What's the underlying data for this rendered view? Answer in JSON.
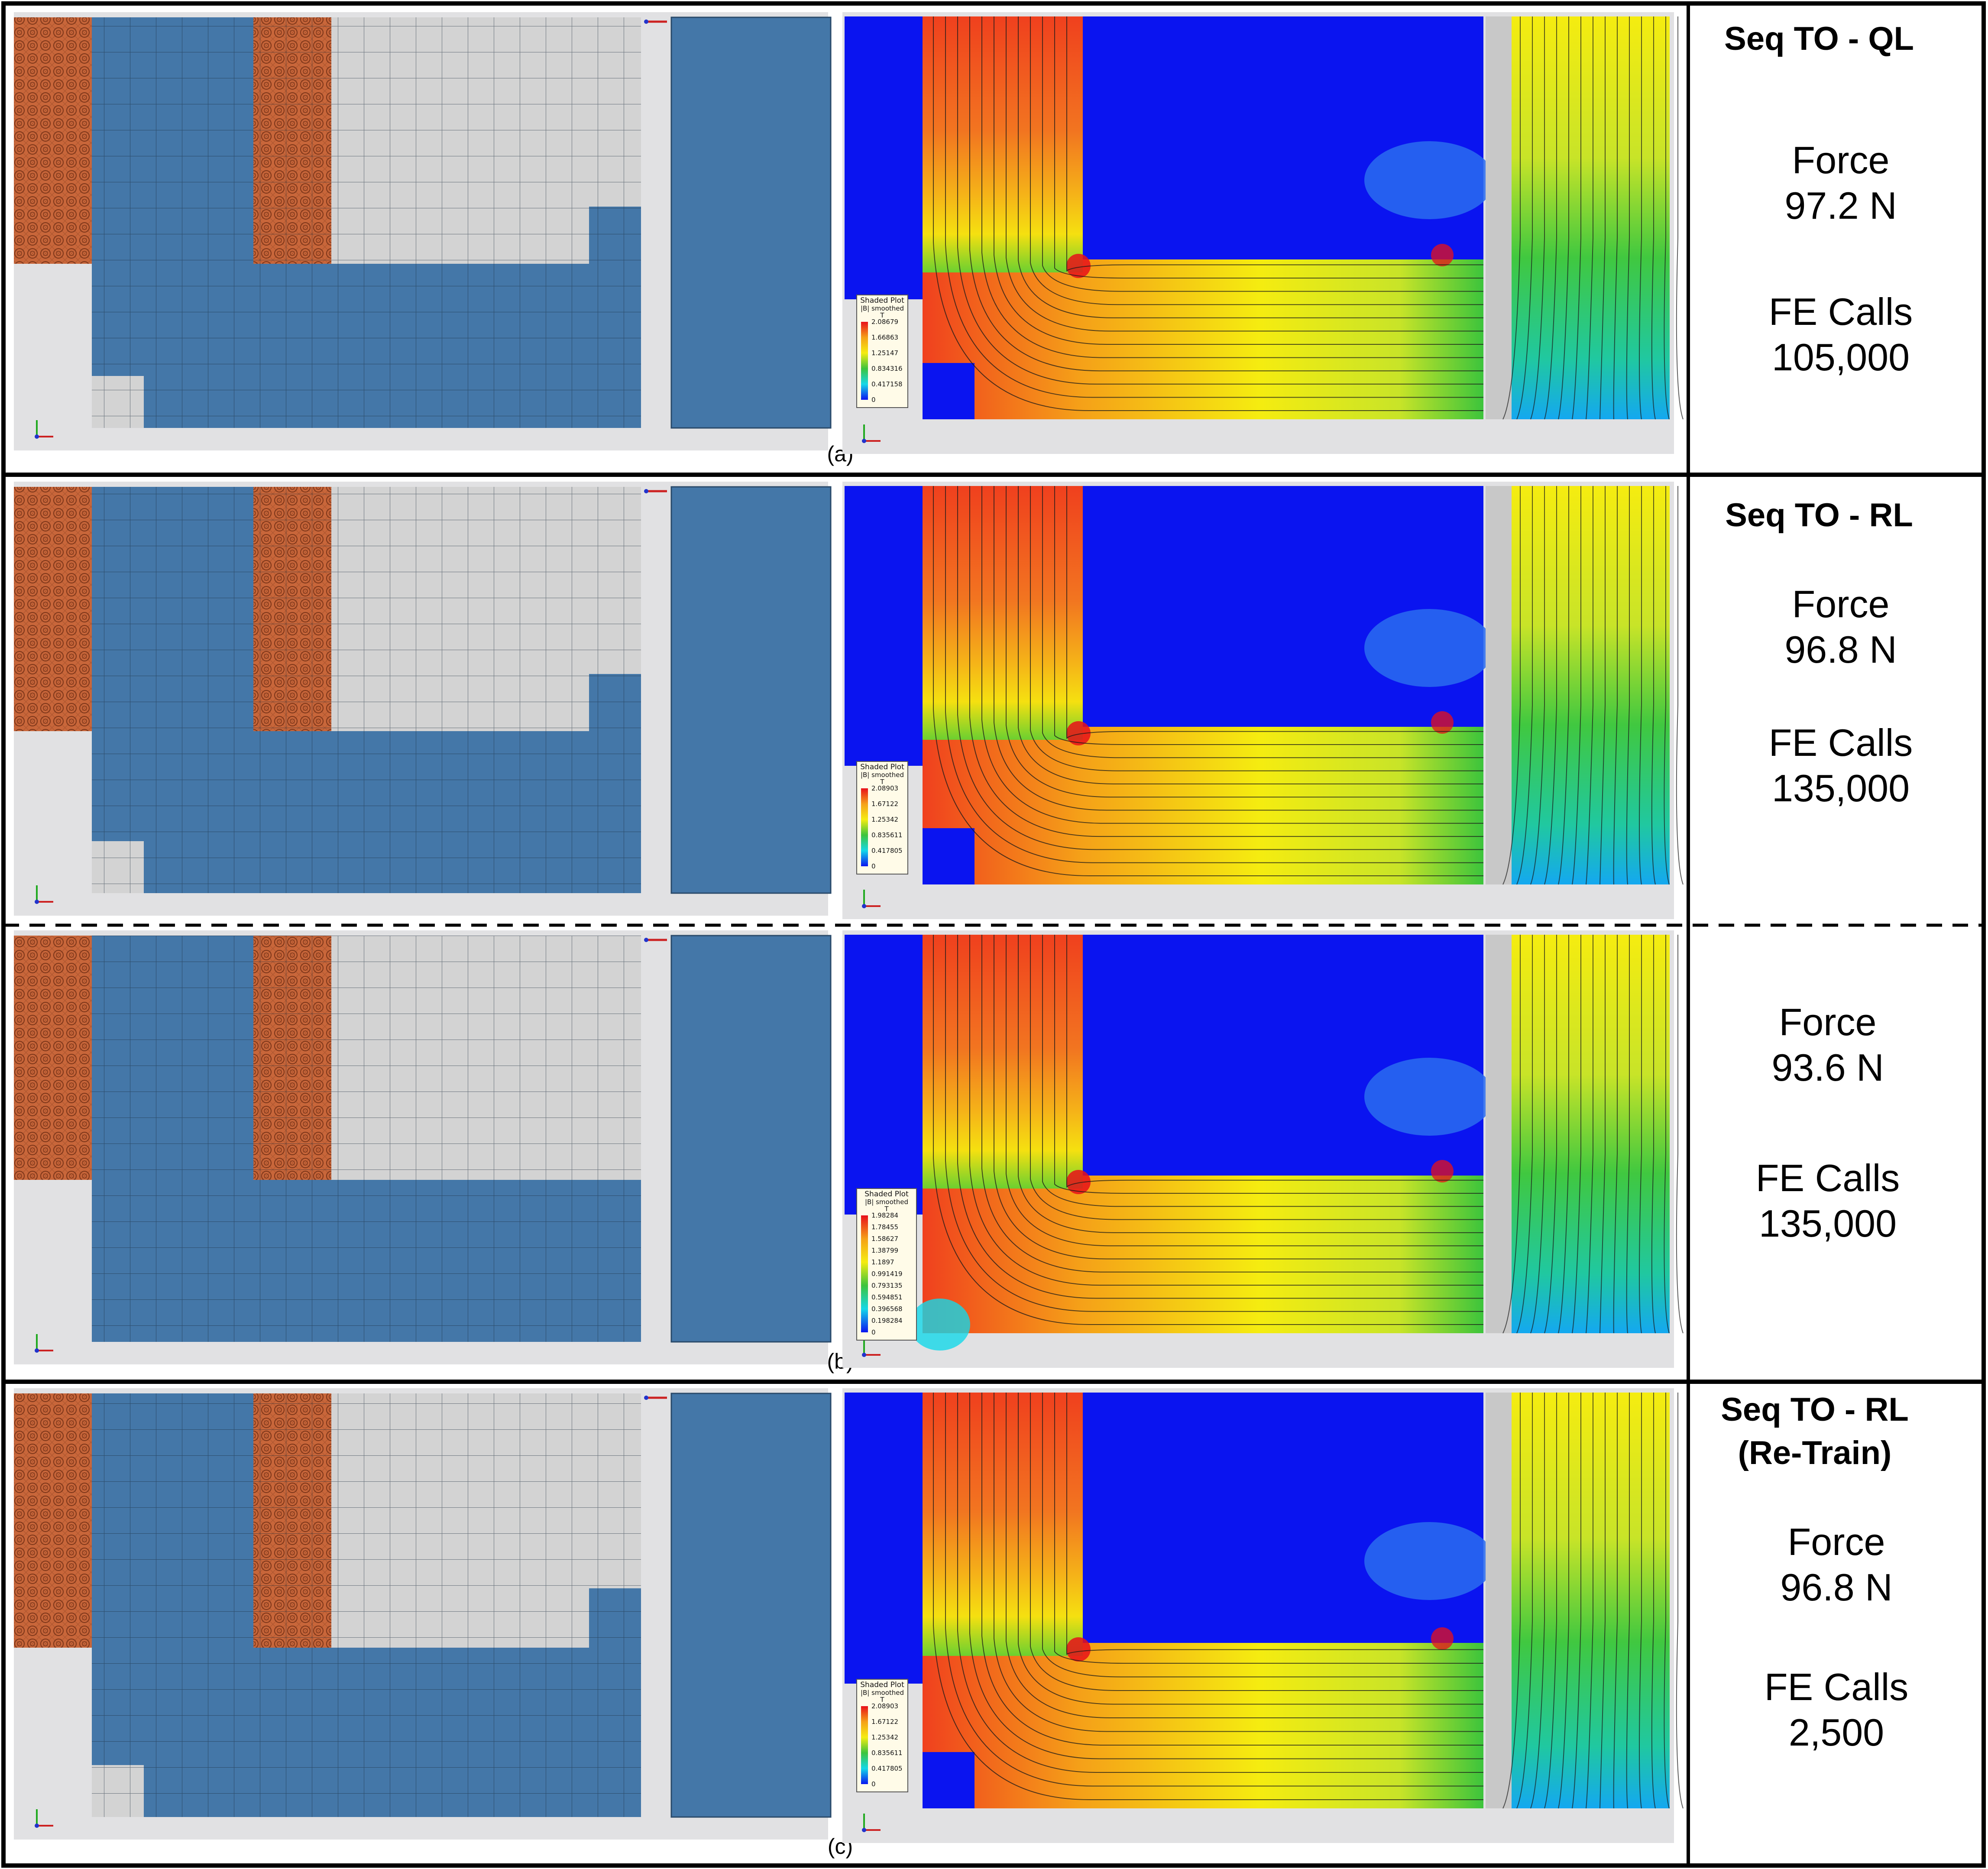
{
  "colors": {
    "mesh_blue": "#4477a8",
    "coil_orange": "#c8663a",
    "air_gray": "#d3d3d3",
    "bg_gray": "#e1e1e3",
    "field_blue": "#0a14f0",
    "field_red": "#f0401e",
    "field_yellow": "#f5ec10",
    "field_green": "#3cc43c",
    "field_cyan": "#14d8e8"
  },
  "rows": [
    {
      "caption": "(a)",
      "title_lines": [
        "Seq TO - QL"
      ],
      "force_label": "Force",
      "force_value": "97.2 N",
      "calls_label": "FE Calls",
      "calls_value": "105,000",
      "legend": {
        "title": "Shaded Plot",
        "subtitle": "|B| smoothed",
        "unit": "T",
        "values": [
          "2.08679",
          "1.66863",
          "1.25147",
          "0.834316",
          "0.417158",
          "0"
        ]
      }
    },
    {
      "caption": "",
      "title_lines": [
        "Seq TO - RL"
      ],
      "force_label": "Force",
      "force_value": "96.8 N",
      "calls_label": "FE Calls",
      "calls_value": "135,000",
      "legend": {
        "title": "Shaded Plot",
        "subtitle": "|B| smoothed",
        "unit": "T",
        "values": [
          "2.08903",
          "1.67122",
          "1.25342",
          "0.835611",
          "0.417805",
          "0"
        ]
      }
    },
    {
      "caption": "(b)",
      "title_lines": [],
      "force_label": "Force",
      "force_value": "93.6 N",
      "calls_label": "FE Calls",
      "calls_value": "135,000",
      "legend": {
        "title": "Shaded Plot",
        "subtitle": "|B| smoothed",
        "unit": "T",
        "values": [
          "1.98284",
          "1.78455",
          "1.58627",
          "1.38799",
          "1.1897",
          "0.991419",
          "0.793135",
          "0.594851",
          "0.396568",
          "0.198284",
          "0"
        ]
      }
    },
    {
      "caption": "(c)",
      "title_lines": [
        "Seq TO - RL",
        "(Re-Train)"
      ],
      "force_label": "Force",
      "force_value": "96.8 N",
      "calls_label": "FE Calls",
      "calls_value": "2,500",
      "legend": {
        "title": "Shaded Plot",
        "subtitle": "|B| smoothed",
        "unit": "T",
        "values": [
          "2.08903",
          "1.67122",
          "1.25342",
          "0.835611",
          "0.417805",
          "0"
        ]
      }
    }
  ]
}
